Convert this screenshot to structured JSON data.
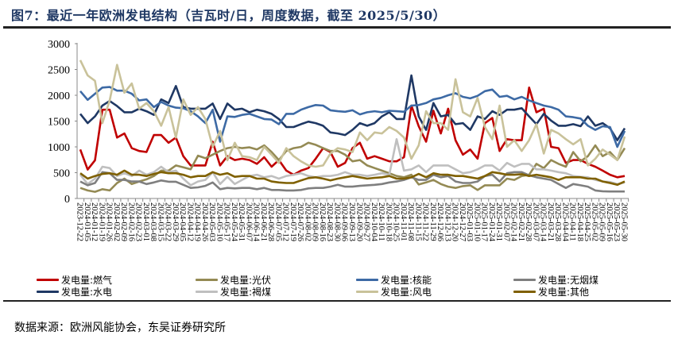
{
  "title": "图7：最近一年欧洲发电结构（吉瓦时/日，周度数据，截至 2025/5/30）",
  "source": "数据来源：欧洲风能协会，东吴证券研究所",
  "chart_data": {
    "type": "line",
    "title": "图7：最近一年欧洲发电结构（吉瓦时/日，周度数据，截至 2025/5/30）",
    "xlabel": "",
    "ylabel": "",
    "ylim": [
      0,
      3000
    ],
    "yticks": [
      "0",
      "500",
      "1000",
      "1500",
      "2000",
      "2500",
      "3000"
    ],
    "grid": false,
    "legend_position": "bottom",
    "categories": [
      "2023-12-22",
      "2024-01-05",
      "2024-01-12",
      "2024-01-19",
      "2024-01-26",
      "2024-02-02",
      "2024-02-09",
      "2024-02-16",
      "2024-02-23",
      "2024-03-01",
      "2024-03-08",
      "2024-03-15",
      "2024-03-22",
      "2024-03-29",
      "2024-04-05",
      "2024-04-12",
      "2024-04-19",
      "2024-04-26",
      "2024-05-03",
      "2024-05-10",
      "2024-05-17",
      "2024-05-24",
      "2024-05-31",
      "2024-06-07",
      "2024-06-14",
      "2024-06-21",
      "2024-06-28",
      "2024-07-05",
      "2024-07-12",
      "2024-07-19",
      "2024-07-26",
      "2024-08-02",
      "2024-08-09",
      "2024-08-16",
      "2024-08-23",
      "2024-08-30",
      "2024-09-06",
      "2024-09-13",
      "2024-09-20",
      "2024-09-27",
      "2024-10-04",
      "2024-10-11",
      "2024-10-18",
      "2024-10-25",
      "2024-11-01",
      "2024-11-08",
      "2024-11-15",
      "2024-11-22",
      "2024-11-29",
      "2024-12-06",
      "2024-12-13",
      "2024-12-20",
      "2024-12-27",
      "2025-01-03",
      "2025-01-10",
      "2025-01-17",
      "2025-01-24",
      "2025-01-31",
      "2025-02-07",
      "2025-02-14",
      "2025-02-21",
      "2025-02-28",
      "2025-03-07",
      "2025-03-14",
      "2025-03-21",
      "2025-03-28",
      "2025-04-04",
      "2025-04-11",
      "2025-04-18",
      "2025-04-25",
      "2025-05-02",
      "2025-05-09",
      "2025-05-16",
      "2025-05-23",
      "2025-05-30"
    ],
    "series": [
      {
        "name": "发电量:燃气",
        "color": "#c00000",
        "values": [
          950,
          560,
          740,
          1720,
          1720,
          1180,
          1260,
          975,
          920,
          900,
          1230,
          1230,
          1080,
          1180,
          820,
          640,
          640,
          640,
          1100,
          640,
          820,
          745,
          770,
          745,
          670,
          800,
          615,
          745,
          540,
          460,
          540,
          590,
          770,
          975,
          900,
          615,
          690,
          975,
          1080,
          770,
          820,
          770,
          720,
          720,
          800,
          1800,
          1400,
          1100,
          1700,
          1260,
          1740,
          1130,
          850,
          950,
          770,
          1460,
          1560,
          920,
          1150,
          1130,
          1130,
          2150,
          1670,
          1740,
          1000,
          975,
          690,
          745,
          745,
          670,
          615,
          540,
          460,
          410,
          435
        ]
      },
      {
        "name": "发电量:水电",
        "color": "#1f3864",
        "values": [
          1640,
          1460,
          1590,
          1800,
          1890,
          1790,
          1670,
          1670,
          1740,
          1690,
          1620,
          1920,
          1850,
          2180,
          1770,
          1740,
          1740,
          1740,
          1840,
          1540,
          1840,
          1720,
          1740,
          1670,
          1720,
          1690,
          1640,
          1540,
          1385,
          1385,
          1440,
          1490,
          1460,
          1410,
          1280,
          1260,
          1230,
          1330,
          1460,
          1410,
          1460,
          1590,
          1670,
          1540,
          1540,
          2385,
          1590,
          1330,
          1850,
          1590,
          1620,
          1440,
          1460,
          1330,
          1590,
          1540,
          1690,
          1620,
          1720,
          1720,
          1750,
          1590,
          1440,
          1640,
          1510,
          1410,
          1410,
          1440,
          1400,
          1590,
          1410,
          1460,
          1360,
          1130,
          1360
        ]
      },
      {
        "name": "发电量:光伏",
        "color": "#948a54",
        "values": [
          205,
          155,
          130,
          180,
          155,
          300,
          385,
          280,
          330,
          370,
          435,
          540,
          540,
          640,
          605,
          565,
          830,
          780,
          850,
          920,
          975,
          1000,
          975,
          990,
          950,
          1030,
          900,
          745,
          920,
          975,
          1000,
          1080,
          1040,
          975,
          920,
          920,
          850,
          720,
          745,
          640,
          590,
          540,
          490,
          435,
          410,
          460,
          270,
          310,
          360,
          280,
          230,
          205,
          240,
          255,
          165,
          255,
          255,
          255,
          385,
          360,
          435,
          460,
          670,
          590,
          745,
          670,
          615,
          900,
          720,
          820,
          1030,
          820,
          900,
          745,
          975
        ]
      },
      {
        "name": "发电量:褐煤",
        "color": "#bfbfbf",
        "values": [
          460,
          280,
          385,
          615,
          590,
          435,
          490,
          435,
          540,
          460,
          510,
          615,
          510,
          540,
          385,
          255,
          330,
          360,
          510,
          280,
          420,
          280,
          360,
          435,
          460,
          410,
          435,
          385,
          435,
          460,
          490,
          435,
          410,
          435,
          435,
          460,
          510,
          460,
          460,
          435,
          460,
          490,
          460,
          1150,
          540,
          565,
          640,
          510,
          640,
          640,
          640,
          565,
          490,
          510,
          565,
          640,
          640,
          540,
          690,
          615,
          670,
          670,
          565,
          565,
          540,
          510,
          490,
          435,
          420,
          410,
          360,
          330,
          320,
          280,
          310
        ]
      },
      {
        "name": "发电量:核能",
        "color": "#3d6aa5",
        "values": [
          2080,
          1910,
          2030,
          2150,
          2160,
          2090,
          2090,
          2030,
          1900,
          1920,
          1770,
          1870,
          1800,
          1760,
          1750,
          1690,
          1590,
          1460,
          1720,
          1100,
          1590,
          1580,
          1620,
          1640,
          1590,
          1540,
          1530,
          1440,
          1640,
          1640,
          1720,
          1770,
          1810,
          1800,
          1710,
          1690,
          1680,
          1710,
          1630,
          1670,
          1690,
          1670,
          1700,
          1690,
          1680,
          1800,
          1810,
          1850,
          1920,
          1950,
          2000,
          2040,
          1970,
          1940,
          1990,
          2080,
          2110,
          1970,
          1990,
          1920,
          1970,
          1900,
          1850,
          1800,
          1770,
          1720,
          1590,
          1575,
          1550,
          1410,
          1330,
          1400,
          1385,
          1000,
          1310
        ]
      },
      {
        "name": "发电量:风电",
        "color": "#c9c29a",
        "values": [
          2680,
          2385,
          2280,
          1460,
          1900,
          2590,
          2050,
          2230,
          1740,
          1850,
          1690,
          1410,
          1770,
          1180,
          1920,
          1620,
          1770,
          1540,
          1000,
          1310,
          740,
          1080,
          820,
          800,
          745,
          1000,
          850,
          690,
          975,
          820,
          720,
          640,
          615,
          640,
          870,
          975,
          950,
          900,
          1280,
          1130,
          1280,
          1260,
          1385,
          1310,
          1180,
          770,
          1030,
          1690,
          1460,
          1460,
          1330,
          2310,
          1670,
          1590,
          1950,
          1385,
          1150,
          1800,
          1000,
          1130,
          920,
          1130,
          1440,
          870,
          1330,
          1260,
          1150,
          1050,
          1150,
          640,
          770,
          950,
          850,
          745,
          1200
        ]
      },
      {
        "name": "发电量:无烟煤",
        "color": "#7f7f7f",
        "values": [
          330,
          255,
          300,
          510,
          490,
          360,
          360,
          330,
          330,
          280,
          310,
          350,
          325,
          325,
          265,
          205,
          215,
          245,
          310,
          180,
          205,
          195,
          205,
          205,
          180,
          205,
          165,
          165,
          155,
          155,
          165,
          195,
          205,
          205,
          230,
          265,
          230,
          230,
          245,
          255,
          265,
          280,
          310,
          330,
          360,
          410,
          360,
          360,
          460,
          410,
          435,
          330,
          300,
          300,
          330,
          435,
          460,
          330,
          490,
          510,
          510,
          450,
          410,
          385,
          360,
          280,
          205,
          280,
          255,
          230,
          155,
          140,
          135,
          135,
          135
        ]
      },
      {
        "name": "发电量:其他",
        "color": "#7f6000",
        "values": [
          490,
          385,
          435,
          475,
          490,
          460,
          540,
          460,
          460,
          435,
          475,
          510,
          490,
          490,
          460,
          410,
          435,
          435,
          510,
          460,
          490,
          420,
          435,
          435,
          385,
          385,
          330,
          310,
          300,
          300,
          350,
          395,
          410,
          385,
          350,
          385,
          410,
          435,
          410,
          385,
          400,
          410,
          435,
          385,
          385,
          410,
          475,
          410,
          490,
          460,
          460,
          435,
          435,
          410,
          385,
          435,
          510,
          490,
          460,
          460,
          470,
          435,
          460,
          435,
          410,
          360,
          410,
          410,
          410,
          385,
          385,
          330,
          300,
          265,
          330
        ]
      }
    ]
  }
}
